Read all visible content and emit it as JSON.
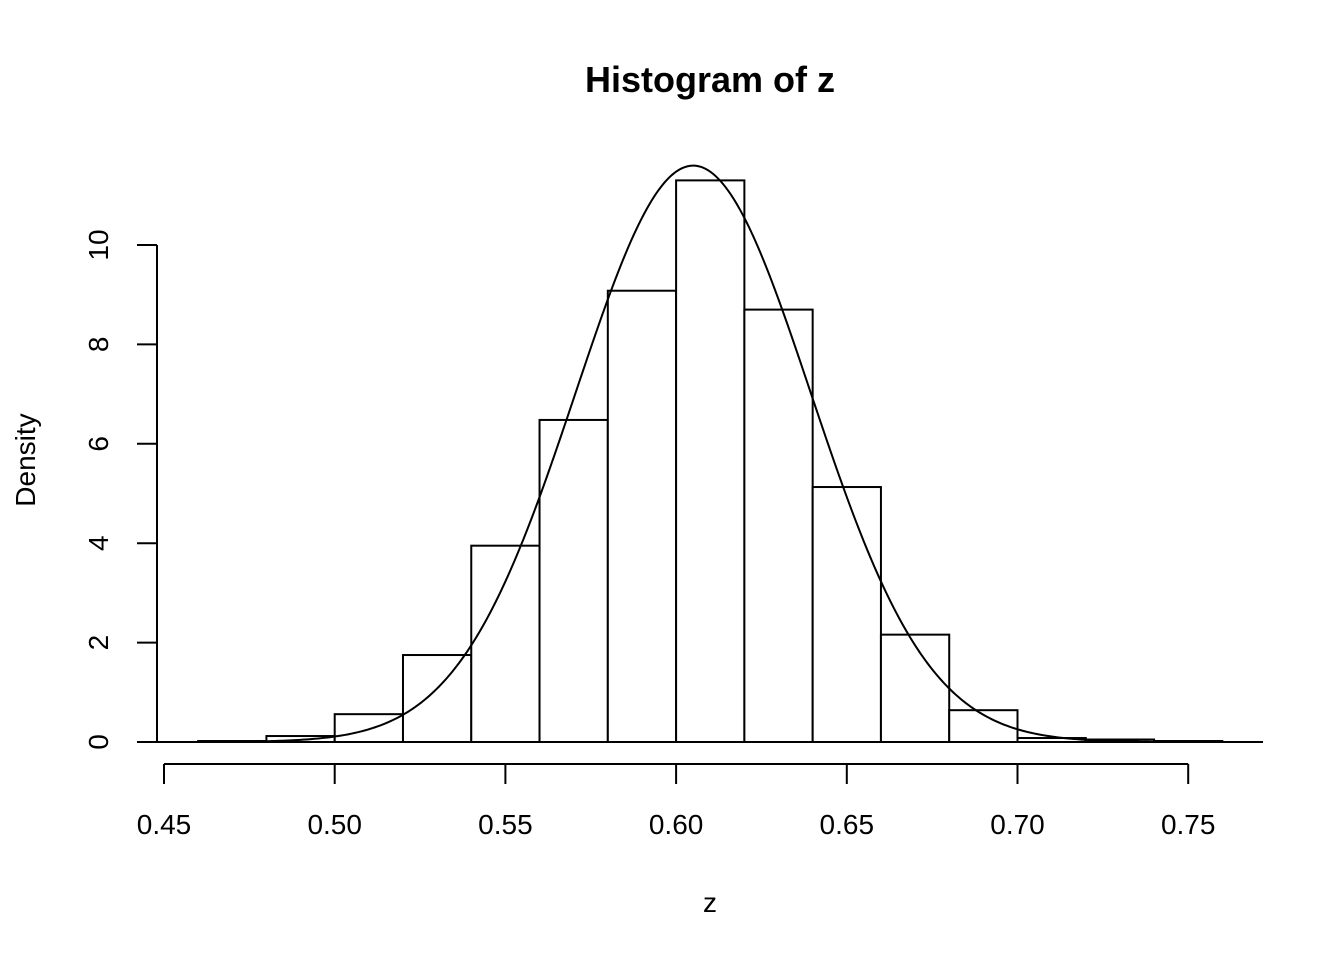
{
  "chart_data": {
    "type": "bar",
    "title": "Histogram of z",
    "xlabel": "z",
    "ylabel": "Density",
    "xlim": [
      0.45,
      0.77
    ],
    "ylim": [
      0,
      11.6
    ],
    "grid": false,
    "legend": "none",
    "x_ticks": [
      "0.45",
      "0.50",
      "0.55",
      "0.60",
      "0.65",
      "0.70",
      "0.75"
    ],
    "x_tick_values": [
      0.45,
      0.5,
      0.55,
      0.6,
      0.65,
      0.7,
      0.75
    ],
    "y_ticks": [
      "0",
      "2",
      "4",
      "6",
      "8",
      "10"
    ],
    "y_tick_values": [
      0,
      2,
      4,
      6,
      8,
      10
    ],
    "bins": [
      {
        "x0": 0.46,
        "x1": 0.48,
        "density": 0.02
      },
      {
        "x0": 0.48,
        "x1": 0.5,
        "density": 0.12
      },
      {
        "x0": 0.5,
        "x1": 0.52,
        "density": 0.56
      },
      {
        "x0": 0.52,
        "x1": 0.54,
        "density": 1.75
      },
      {
        "x0": 0.54,
        "x1": 0.56,
        "density": 3.95
      },
      {
        "x0": 0.56,
        "x1": 0.58,
        "density": 6.48
      },
      {
        "x0": 0.58,
        "x1": 0.6,
        "density": 9.08
      },
      {
        "x0": 0.6,
        "x1": 0.62,
        "density": 11.3
      },
      {
        "x0": 0.62,
        "x1": 0.64,
        "density": 8.7
      },
      {
        "x0": 0.64,
        "x1": 0.66,
        "density": 5.13
      },
      {
        "x0": 0.66,
        "x1": 0.68,
        "density": 2.16
      },
      {
        "x0": 0.68,
        "x1": 0.7,
        "density": 0.64
      },
      {
        "x0": 0.7,
        "x1": 0.72,
        "density": 0.08
      },
      {
        "x0": 0.72,
        "x1": 0.74,
        "density": 0.05
      },
      {
        "x0": 0.74,
        "x1": 0.76,
        "density": 0.02
      }
    ],
    "curve": {
      "type": "normal-density",
      "mean": 0.605,
      "sd": 0.0344
    }
  }
}
